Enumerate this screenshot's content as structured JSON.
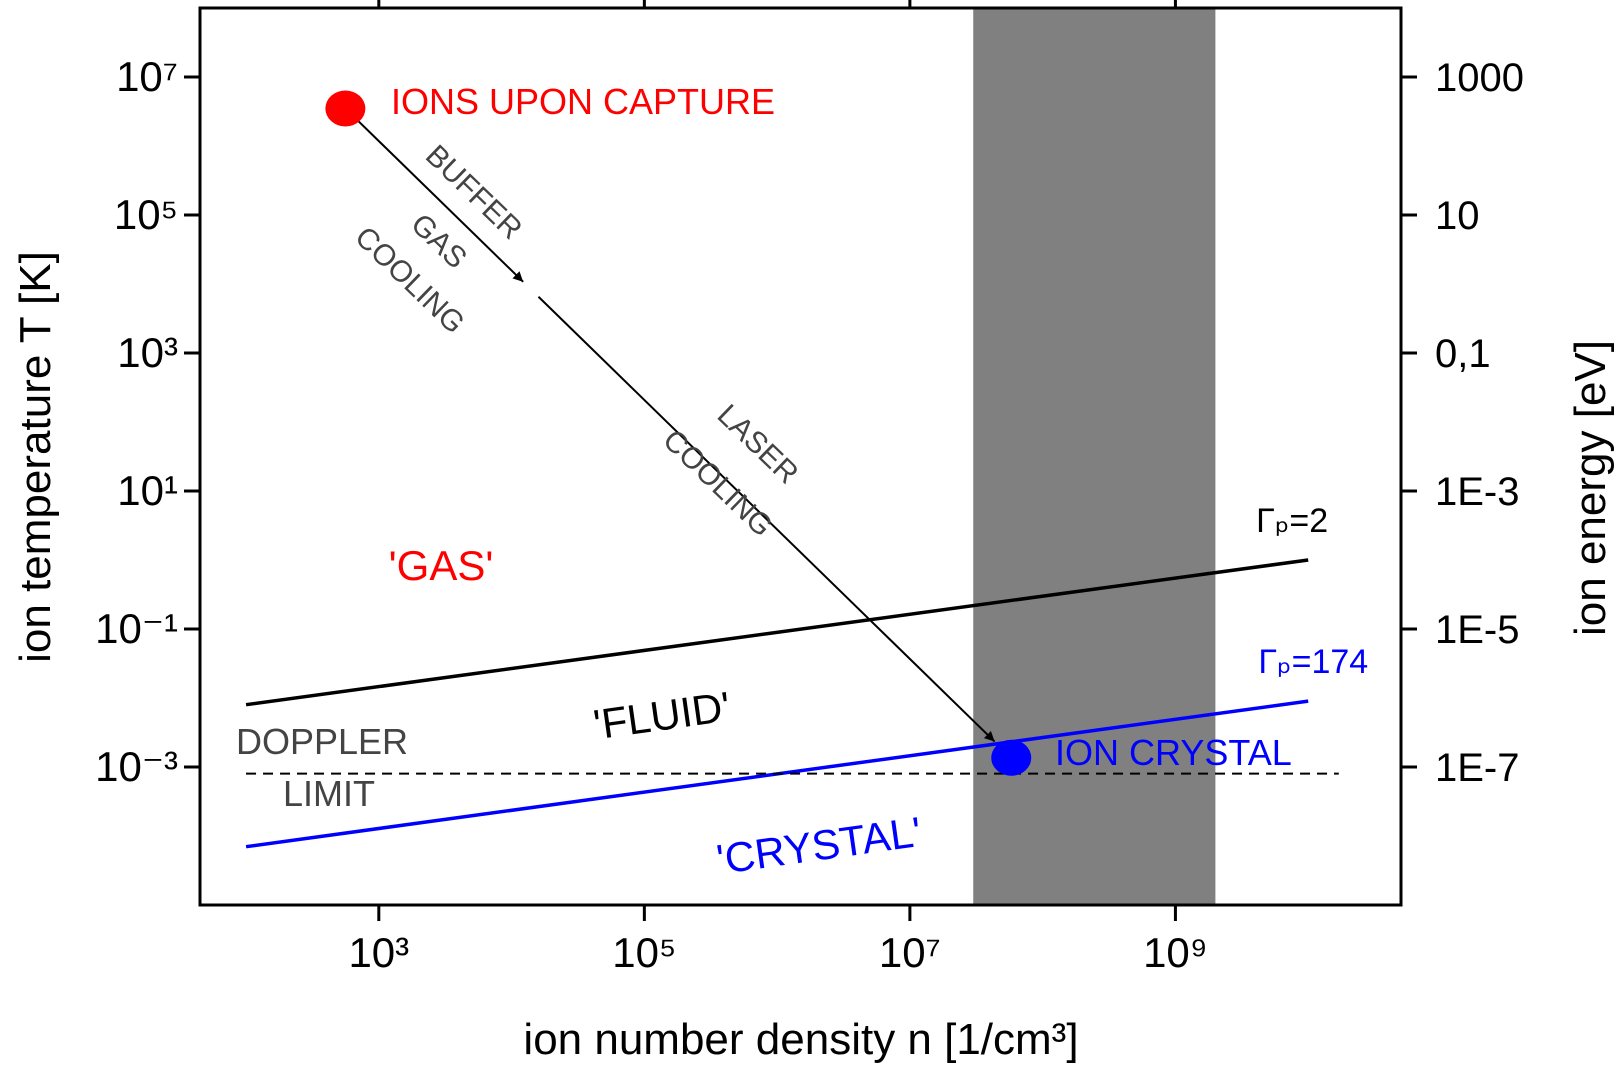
{
  "chart_data": {
    "type": "line",
    "xlabel": "ion number density n [1/cm³]",
    "ylabel": "ion temperature T [K]",
    "y2label": "ion energy [eV]",
    "xscale": "log",
    "yscale": "log",
    "xlim": [
      45,
      50000000000
    ],
    "ylim": [
      1e-05,
      100000000
    ],
    "y2lim": [
      1e-09,
      10000
    ],
    "xticks": [
      {
        "value": 1000,
        "label": "10³"
      },
      {
        "value": 100000,
        "label": "10⁵"
      },
      {
        "value": 10000000,
        "label": "10⁷"
      },
      {
        "value": 1000000000,
        "label": "10⁹"
      }
    ],
    "yticks": [
      {
        "value": 0.001,
        "label": "10⁻³"
      },
      {
        "value": 0.1,
        "label": "10⁻¹"
      },
      {
        "value": 10,
        "label": "10¹"
      },
      {
        "value": 1000,
        "label": "10³"
      },
      {
        "value": 100000,
        "label": "10⁵"
      },
      {
        "value": 10000000,
        "label": "10⁷"
      }
    ],
    "y2ticks": [
      {
        "value": 1e-07,
        "label": "1E-7"
      },
      {
        "value": 1e-05,
        "label": "1E-5"
      },
      {
        "value": 0.001,
        "label": "1E-3"
      },
      {
        "value": 0.1,
        "label": "0,1"
      },
      10,
      1000
    ],
    "series": [
      {
        "name": "Γₚ=2",
        "color": "#000000",
        "x": [
          100,
          10000000000
        ],
        "values": [
          0.008,
          1
        ]
      },
      {
        "name": "Γₚ=174",
        "color": "#0000ff",
        "x": [
          100,
          10000000000
        ],
        "values": [
          7e-05,
          0.009
        ]
      }
    ],
    "doppler_limit": {
      "label": [
        "DOPPLER",
        "LIMIT"
      ],
      "color": "#000000",
      "x": [
        100,
        17000000000
      ],
      "values": [
        0.0008,
        0.0008
      ]
    },
    "shaded_region": {
      "x": [
        30000000,
        2000000000
      ],
      "color": "#808080"
    },
    "points": [
      {
        "label": "IONS UPON CAPTURE",
        "color": "#ff0000",
        "x": 560,
        "y": 3500000
      },
      {
        "label": "ION CRYSTAL",
        "color": "#0000ff",
        "x": 58000000,
        "y": 0.00136
      }
    ],
    "annotations": [
      "BUFFER",
      "GAS",
      "COOLING",
      "LASER",
      "COOLING"
    ],
    "regions": [
      {
        "text": "'GAS'",
        "color": "#ff0000"
      },
      {
        "text": "'FLUID'",
        "color": "#000000"
      },
      {
        "text": "'CRYSTAL'",
        "color": "#0000ff"
      }
    ]
  }
}
